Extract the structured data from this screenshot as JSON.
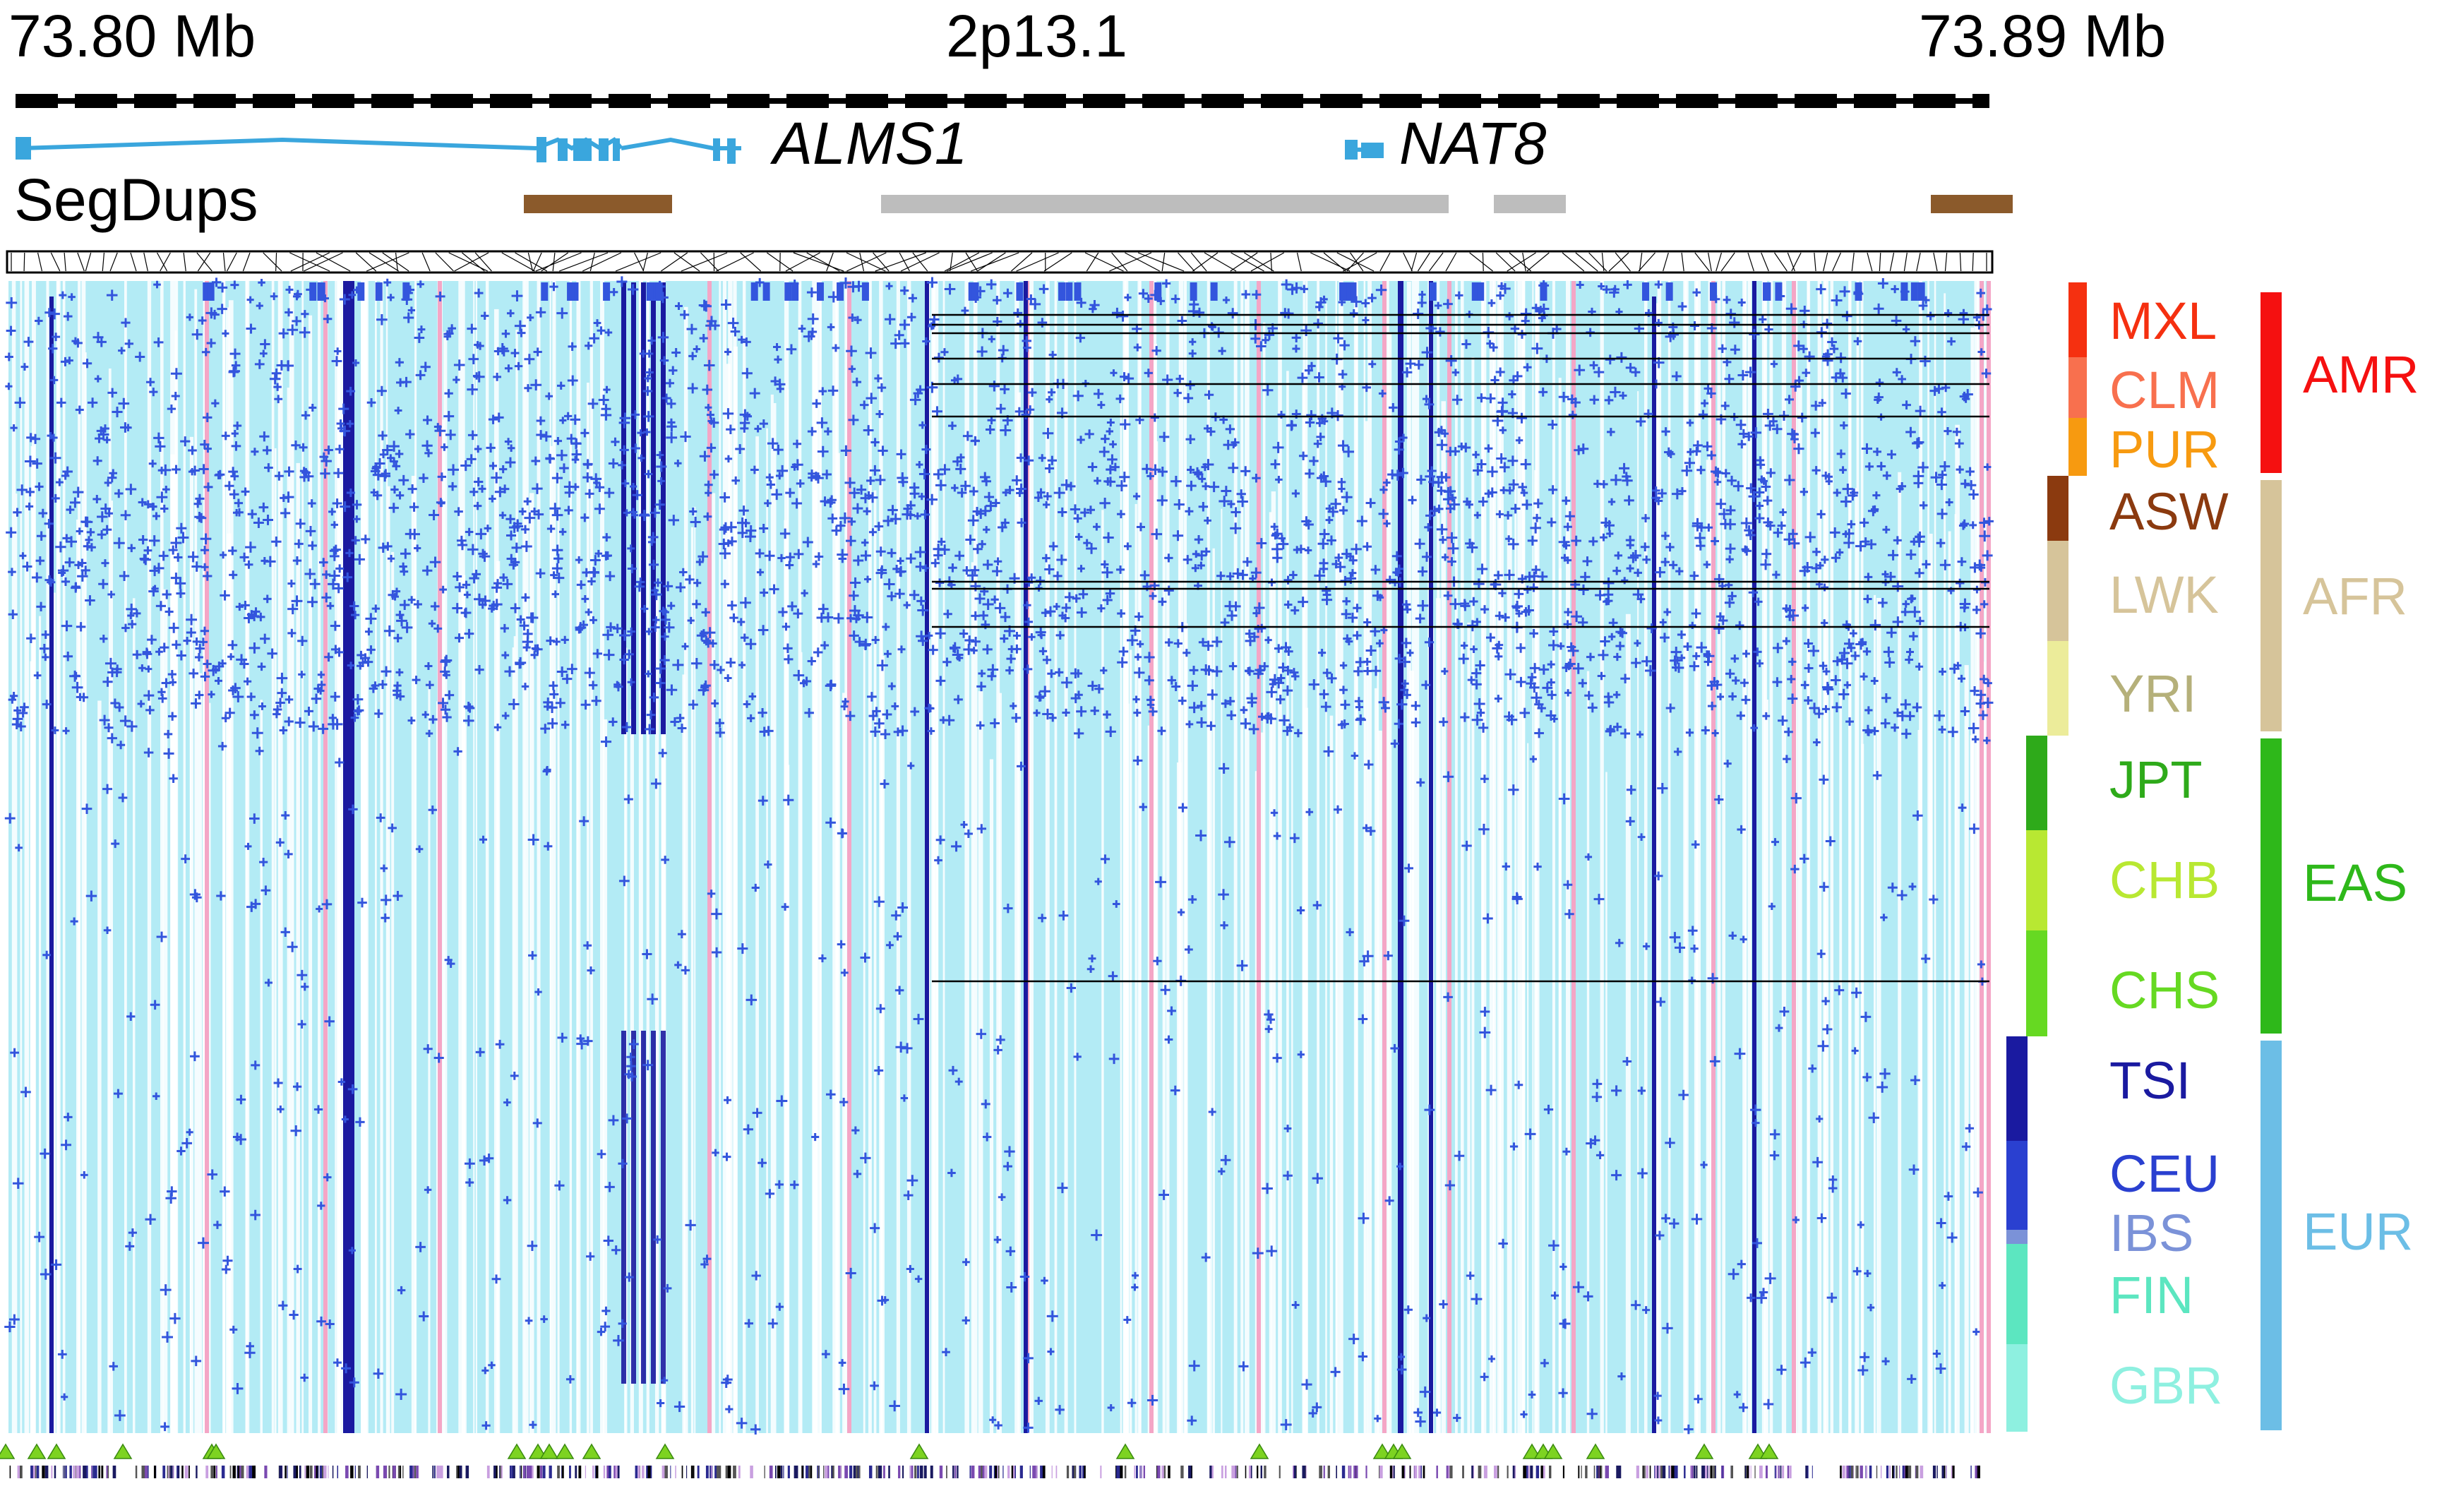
{
  "header": {
    "left_position": "73.80 Mb",
    "band": "2p13.1",
    "right_position": "73.89 Mb"
  },
  "genes": [
    {
      "name": "ALMS1",
      "color": "#3aa6dd"
    },
    {
      "name": "NAT8",
      "color": "#3aa6dd"
    }
  ],
  "segdups": {
    "label": "SegDups",
    "colors": {
      "brown": "#8b5a2b",
      "gray": "#bdbdbd"
    }
  },
  "matrix": {
    "background": "#b3ebf5",
    "plus_color": "#3355dd",
    "dark_column_color": "#1a1aa0",
    "pink_column_color": "#f4a6c6",
    "triangle_color": "#7dd321"
  },
  "populations": [
    {
      "code": "MXL",
      "color": "#f53010",
      "group": "AMR"
    },
    {
      "code": "CLM",
      "color": "#f8704e",
      "group": "AMR"
    },
    {
      "code": "PUR",
      "color": "#f79a10",
      "group": "AMR"
    },
    {
      "code": "ASW",
      "color": "#8b3a0f",
      "group": "AFR"
    },
    {
      "code": "LWK",
      "color": "#d6c49a",
      "group": "AFR"
    },
    {
      "code": "YRI",
      "color": "#b5b07a",
      "group": "AFR"
    },
    {
      "code": "JPT",
      "color": "#2eaa1a",
      "group": "EAS"
    },
    {
      "code": "CHB",
      "color": "#b8e832",
      "group": "EAS"
    },
    {
      "code": "CHS",
      "color": "#66d922",
      "group": "EAS"
    },
    {
      "code": "TSI",
      "color": "#1a1aa0",
      "group": "EUR"
    },
    {
      "code": "CEU",
      "color": "#2a40d0",
      "group": "EUR"
    },
    {
      "code": "IBS",
      "color": "#7b92d8",
      "group": "EUR"
    },
    {
      "code": "FIN",
      "color": "#5ce6c0",
      "group": "EUR"
    },
    {
      "code": "GBR",
      "color": "#8ef0e0",
      "group": "EUR"
    }
  ],
  "super_populations": [
    {
      "code": "AMR",
      "color": "#f51010"
    },
    {
      "code": "AFR",
      "color": "#d6c49a"
    },
    {
      "code": "EAS",
      "color": "#2eb81a"
    },
    {
      "code": "EUR",
      "color": "#6cbee6"
    }
  ]
}
